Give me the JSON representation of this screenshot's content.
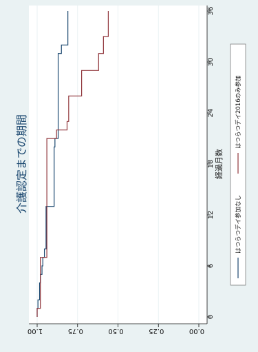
{
  "chart_data": {
    "type": "line",
    "step": true,
    "orientation": "rotated 90 degrees clockwise",
    "title": "介護認定までの期間",
    "xlabel": "経過月数",
    "ylabel": "",
    "xlim": [
      0,
      36
    ],
    "ylim": [
      0,
      1.02
    ],
    "x_ticks": [
      0,
      6,
      12,
      18,
      24,
      30,
      36
    ],
    "x_tick_labels": [
      "0",
      "6",
      "12",
      "18",
      "24",
      "30",
      "36"
    ],
    "y_ticks": [
      1.0,
      0.75,
      0.5,
      0.25,
      0.0
    ],
    "y_tick_labels": [
      "1.00",
      "0.75",
      "0.50",
      "0.25",
      "0.00"
    ],
    "grid": true,
    "legend_position": "bottom",
    "series": [
      {
        "name": "はつらつデイ参加なし",
        "color": "#1a476f",
        "x": [
          0,
          1,
          2,
          4,
          5,
          6,
          7,
          8,
          13,
          20,
          21,
          31,
          32,
          36
        ],
        "y": [
          1.0,
          0.995,
          0.985,
          0.98,
          0.97,
          0.965,
          0.955,
          0.945,
          0.895,
          0.89,
          0.87,
          0.85,
          0.81,
          0.81
        ]
      },
      {
        "name": "はつらつデイ2016のみ参加",
        "color": "#90353b",
        "x": [
          0,
          1,
          7,
          21,
          22,
          23,
          26,
          29,
          31,
          33,
          36
        ],
        "y": [
          1.0,
          0.98,
          0.94,
          0.88,
          0.815,
          0.805,
          0.725,
          0.62,
          0.59,
          0.56,
          0.56
        ]
      }
    ]
  },
  "colors": {
    "outer_background": "#eaf2f3",
    "plot_background": "#ffffff",
    "gridline": "#eaf2f3"
  }
}
